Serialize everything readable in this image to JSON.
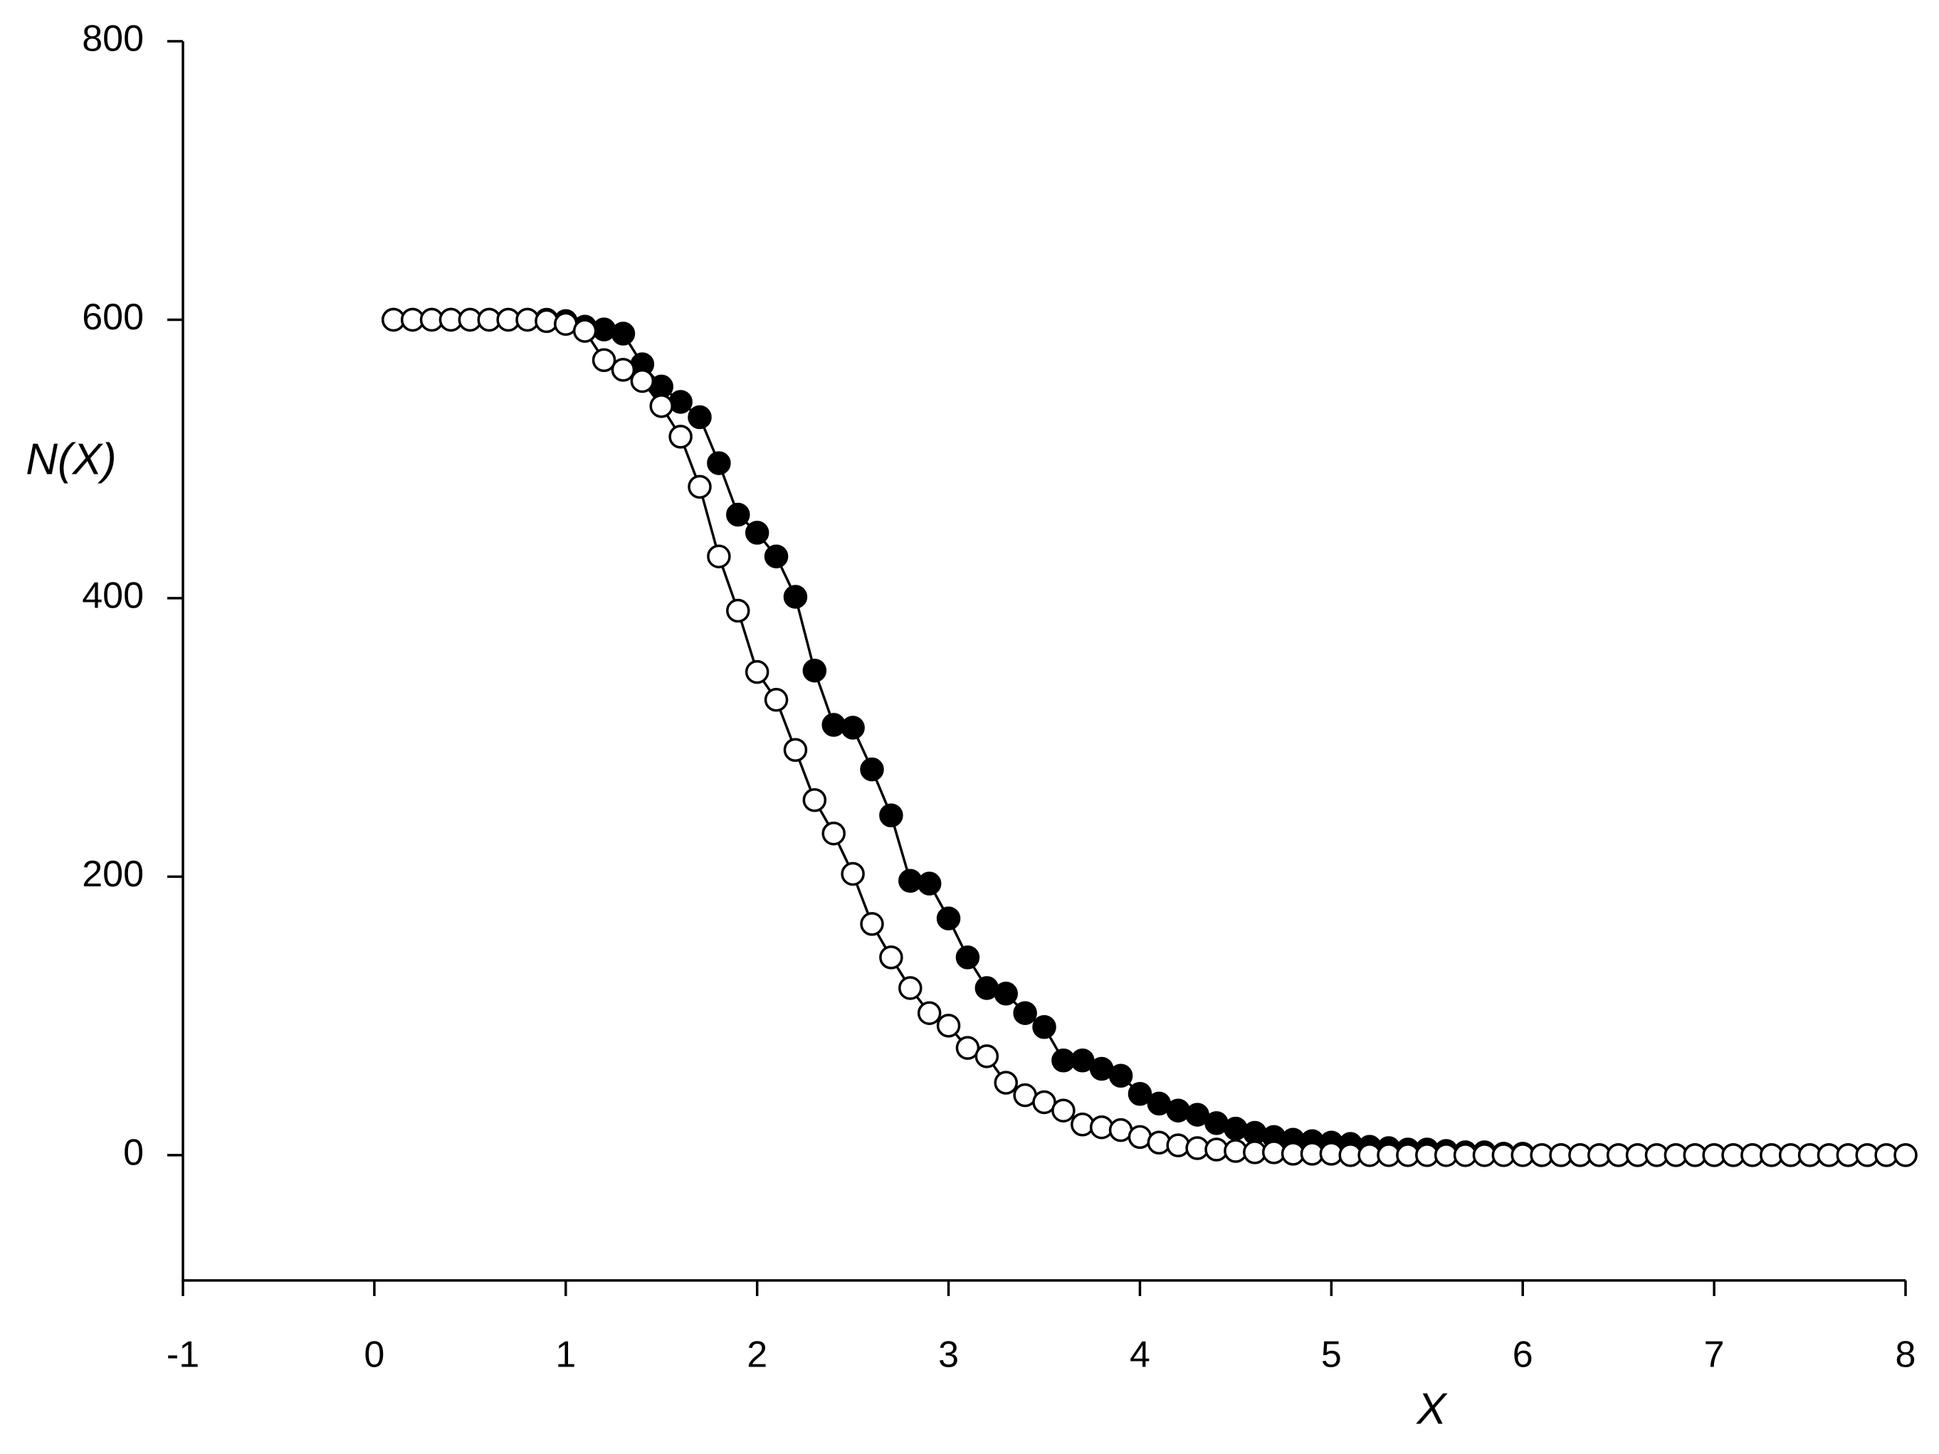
{
  "chart_data": {
    "type": "line",
    "xlabel": "X",
    "ylabel": "N(X)",
    "x": [
      0.1,
      0.2,
      0.3,
      0.4,
      0.5,
      0.6,
      0.7,
      0.8,
      0.9,
      1,
      1.1,
      1.2,
      1.3,
      1.4,
      1.5,
      1.6,
      1.7,
      1.8,
      1.9,
      2,
      2.1,
      2.2,
      2.3,
      2.4,
      2.5,
      2.6,
      2.7,
      2.8,
      2.9,
      3,
      3.1,
      3.2,
      3.3,
      3.4,
      3.5,
      3.6,
      3.7,
      3.8,
      3.9,
      4,
      4.1,
      4.2,
      4.3,
      4.4,
      4.5,
      4.6,
      4.7,
      4.8,
      4.9,
      5,
      5.1,
      5.2,
      5.3,
      5.4,
      5.5,
      5.6,
      5.7,
      5.8,
      5.9,
      6,
      6.1,
      6.2,
      6.3,
      6.4,
      6.5,
      6.6,
      6.7,
      6.8,
      6.9,
      7,
      7.1,
      7.2,
      7.3,
      7.4,
      7.5,
      7.6,
      7.7,
      7.8,
      7.9,
      8
    ],
    "series": [
      {
        "color": "#000000",
        "values": [
          600,
          600,
          600,
          600,
          600,
          600,
          600,
          600,
          600,
          599,
          595,
          593,
          590,
          568,
          552,
          541,
          530,
          497,
          460,
          447,
          430,
          401,
          348,
          309,
          307,
          277,
          244,
          197,
          195,
          170,
          142,
          120,
          116,
          102,
          92,
          68,
          68,
          62,
          57,
          44,
          37,
          32,
          29,
          23,
          19,
          16,
          13,
          11,
          10,
          9,
          8,
          6,
          5,
          4,
          4,
          3,
          2,
          2,
          1,
          1,
          0,
          0,
          0,
          0,
          0,
          0,
          0,
          0,
          0,
          0,
          0,
          0,
          0,
          0,
          0,
          0,
          0,
          0,
          0,
          0
        ]
      },
      {
        "color": "#ffffff",
        "values": [
          600,
          600,
          600,
          600,
          600,
          600,
          600,
          600,
          599,
          597,
          592,
          571,
          564,
          556,
          538,
          516,
          480,
          430,
          391,
          347,
          327,
          291,
          255,
          231,
          202,
          166,
          142,
          120,
          102,
          93,
          77,
          71,
          52,
          43,
          38,
          32,
          22,
          20,
          18,
          13,
          9,
          7,
          5,
          4,
          3,
          2,
          2,
          1,
          1,
          1,
          0,
          0,
          0,
          0,
          0,
          0,
          0,
          0,
          0,
          0,
          0,
          0,
          0,
          0,
          0,
          0,
          0,
          0,
          0,
          0,
          0,
          0,
          0,
          0,
          0,
          0,
          0,
          0,
          0,
          0
        ]
      }
    ],
    "xlim": [
      -1,
      8
    ],
    "xticks": [
      -1,
      0,
      1,
      2,
      3,
      4,
      5,
      6,
      7,
      8
    ],
    "ylim": [
      -90,
      800
    ],
    "yticks": [
      0,
      200,
      400,
      600,
      800
    ]
  }
}
